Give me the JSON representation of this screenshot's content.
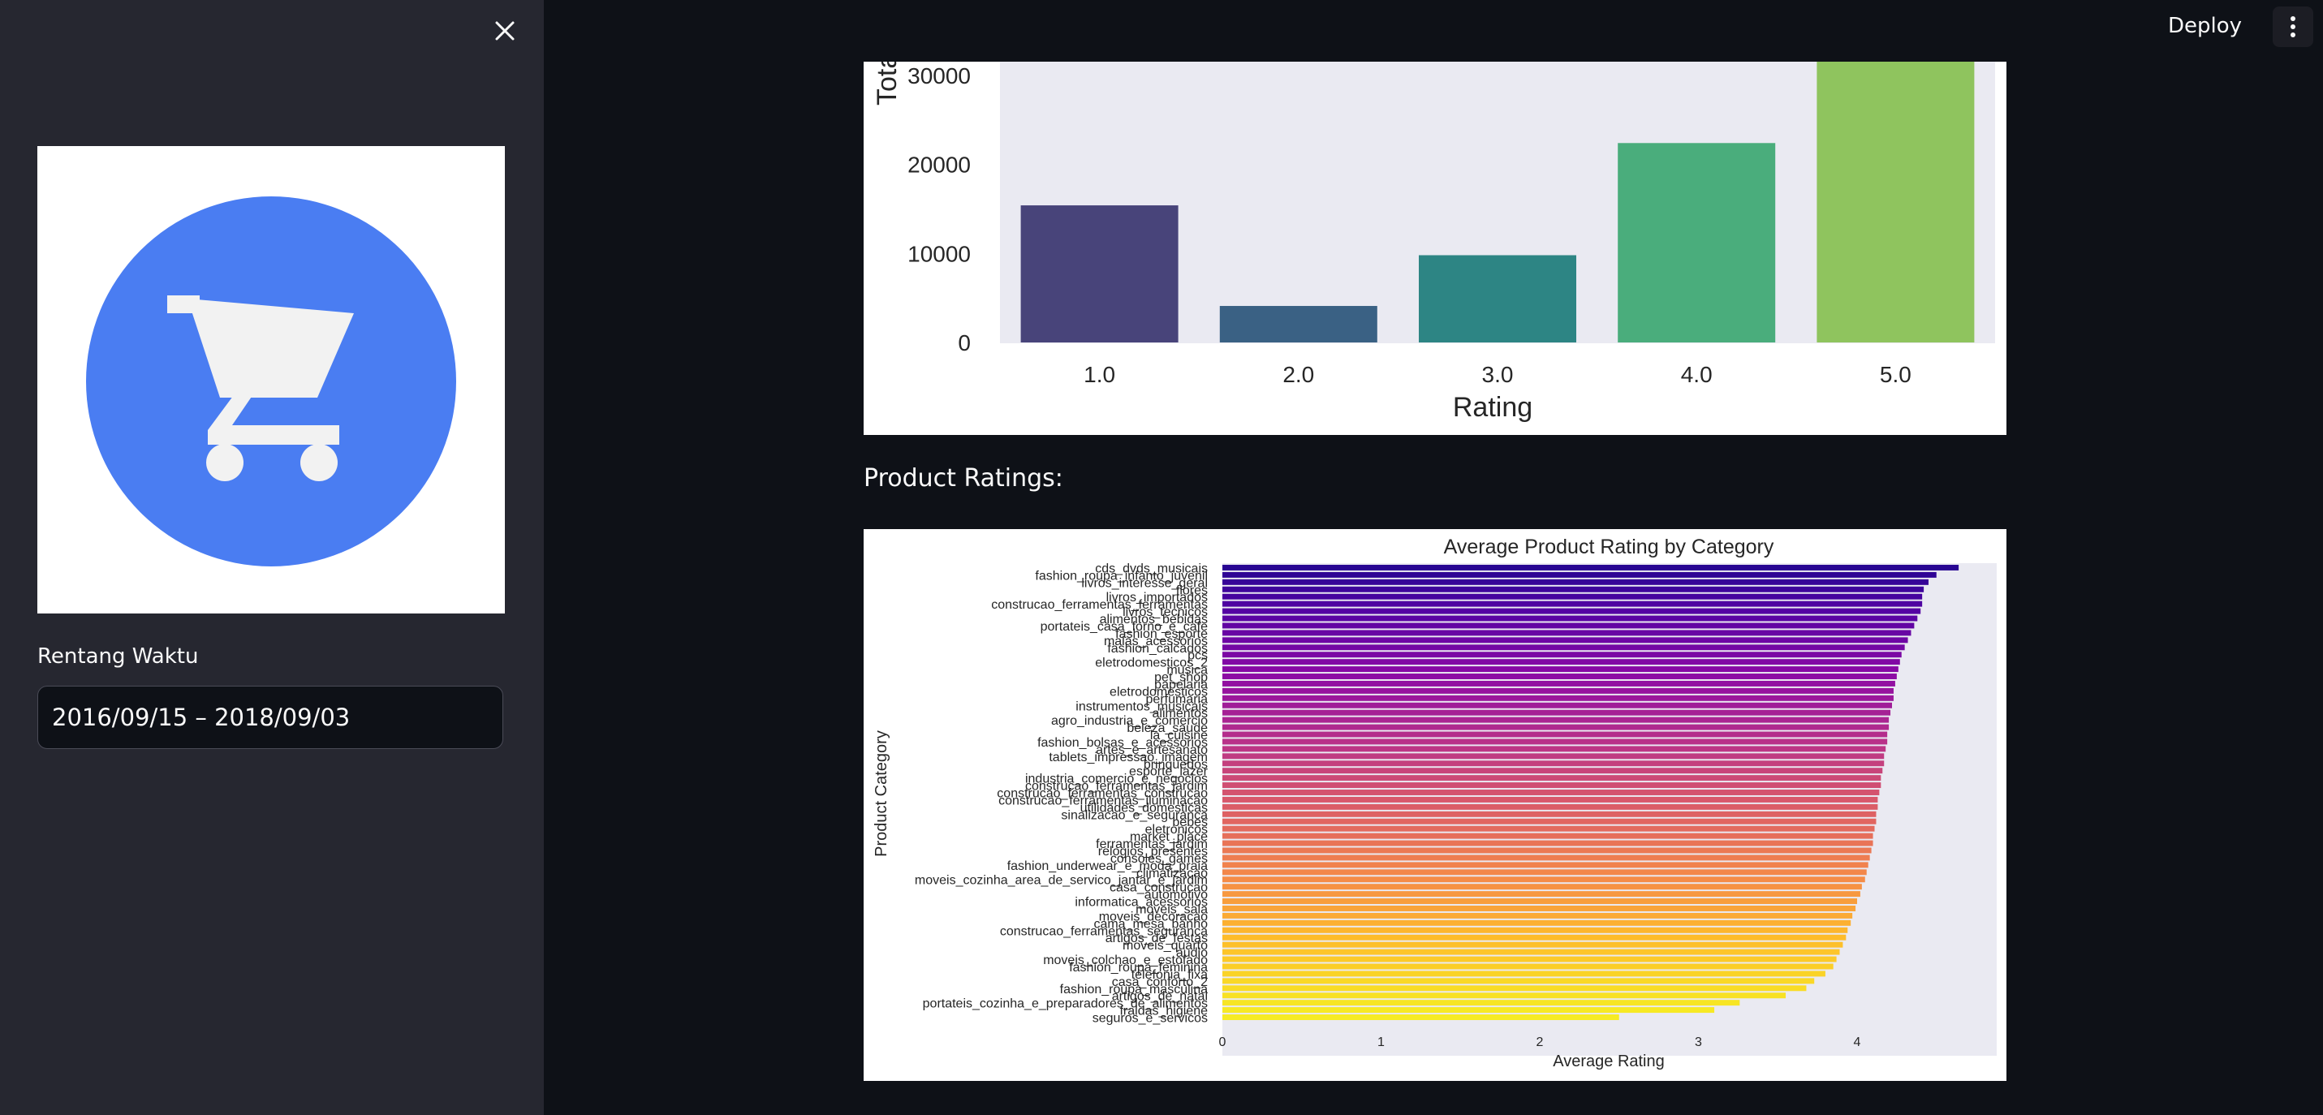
{
  "header": {
    "deploy_label": "Deploy"
  },
  "sidebar": {
    "date_range": {
      "label": "Rentang Waktu",
      "value": "2016/09/15 – 2018/09/03"
    }
  },
  "main": {
    "section_title": "Product Ratings:"
  },
  "chart_data": [
    {
      "type": "bar",
      "xlabel": "Rating",
      "ylabel": "Tota",
      "categories": [
        "1.0",
        "2.0",
        "3.0",
        "4.0",
        "5.0"
      ],
      "values": [
        15400,
        4100,
        9800,
        22400,
        32000
      ],
      "yticks": [
        0,
        10000,
        20000,
        30000
      ],
      "ylim": [
        0,
        31500
      ],
      "colors": [
        "#48447a",
        "#3a6184",
        "#2d8584",
        "#4aad7c",
        "#8fc45e"
      ],
      "grid": false
    },
    {
      "type": "bar",
      "orientation": "horizontal",
      "title": "Average Product Rating by Category",
      "xlabel": "Average Rating",
      "ylabel": "Product Category",
      "xticks": [
        0,
        1,
        2,
        3,
        4
      ],
      "xlim": [
        0,
        4.9
      ],
      "palette": "plasma",
      "categories": [
        "cds_dvds_musicais",
        "fashion_roupa_infanto_juvenil",
        "livros_interesse_geral",
        "flores",
        "livros_importados",
        "construcao_ferramentas_ferramentas",
        "livros_tecnicos",
        "alimentos_bebidas",
        "portateis_casa_forno_e_cafe",
        "fashion_esporte",
        "malas_acessorios",
        "fashion_calcados",
        "pcs",
        "eletrodomesticos_2",
        "musica",
        "pet_shop",
        "papelaria",
        "eletrodomesticos",
        "perfumaria",
        "instrumentos_musicais",
        "alimentos",
        "agro_industria_e_comercio",
        "beleza_saude",
        "la_cuisine",
        "fashion_bolsas_e_acessorios",
        "artes_e_artesanato",
        "tablets_impressao_imagem",
        "brinquedos",
        "esporte_lazer",
        "industria_comercio_e_negocios",
        "construcao_ferramentas_jardim",
        "construcao_ferramentas_construcao",
        "construcao_ferramentas_iluminacao",
        "utilidades_domesticas",
        "sinalizacao_e_seguranca",
        "bebes",
        "eletronicos",
        "market_place",
        "ferramentas_jardim",
        "relogios_presentes",
        "consoles_games",
        "fashion_underwear_e_moda_praia",
        "climatizacao",
        "moveis_cozinha_area_de_servico_jantar_e_jardim",
        "casa_construcao",
        "automotivo",
        "informatica_acessorios",
        "moveis_sala",
        "moveis_decoracao",
        "cama_mesa_banho",
        "construcao_ferramentas_seguranca",
        "artigos_de_festas",
        "moveis_quarto",
        "audio",
        "moveis_colchao_e_estofado",
        "fashion_roupa_feminina",
        "telefonia_fixa",
        "casa_conforto_2",
        "fashion_roupa_masculina",
        "artigos_de_natal",
        "portateis_cozinha_e_preparadores_de_alimentos",
        "fraldas_higiene",
        "seguros_e_servicos"
      ],
      "values": [
        4.64,
        4.5,
        4.45,
        4.42,
        4.41,
        4.41,
        4.4,
        4.38,
        4.36,
        4.34,
        4.32,
        4.3,
        4.28,
        4.27,
        4.26,
        4.25,
        4.24,
        4.23,
        4.23,
        4.22,
        4.21,
        4.2,
        4.2,
        4.19,
        4.19,
        4.18,
        4.17,
        4.17,
        4.16,
        4.15,
        4.15,
        4.14,
        4.13,
        4.13,
        4.12,
        4.12,
        4.11,
        4.1,
        4.1,
        4.09,
        4.08,
        4.07,
        4.06,
        4.05,
        4.03,
        4.02,
        4.0,
        3.99,
        3.97,
        3.96,
        3.94,
        3.93,
        3.91,
        3.89,
        3.87,
        3.85,
        3.8,
        3.73,
        3.68,
        3.55,
        3.26,
        3.1,
        2.5
      ]
    }
  ]
}
